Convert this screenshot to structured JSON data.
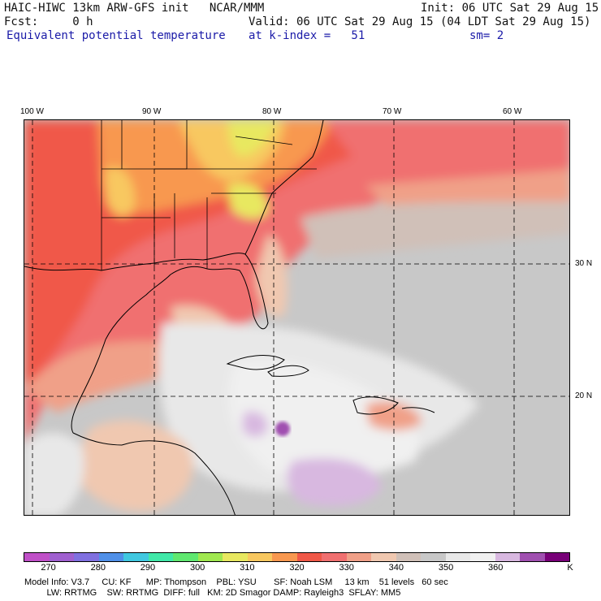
{
  "header": {
    "line1_left": "HAIC-HIWC 13km ARW-GFS init   NCAR/MMM",
    "line1_right": "Init: 06 UTC Sat 29 Aug 15",
    "line2_left": "Fcst:     0 h",
    "line2_right": "Valid: 06 UTC Sat 29 Aug 15 (04 LDT Sat 29 Aug 15)",
    "line3_left": "Equivalent potential temperature",
    "line3_mid": "at k-index =   51",
    "line3_right": "sm= 2"
  },
  "lon_labels": [
    "100 W",
    "90 W",
    "80 W",
    "70 W",
    "60 W"
  ],
  "lat_labels": [
    "30 N",
    "20 N"
  ],
  "colorbar": {
    "colors": [
      "#c050c8",
      "#a060d0",
      "#8070e0",
      "#5090e8",
      "#40c8e0",
      "#40e8a8",
      "#60e870",
      "#a0e850",
      "#e8e860",
      "#f8c860",
      "#f89850",
      "#f05848",
      "#f07070",
      "#f0a088",
      "#f0c8b0",
      "#d0c0b8",
      "#c8c8c8",
      "#e8e8e8",
      "#f0f0f0",
      "#d8b8e0",
      "#a050b0",
      "#780078"
    ],
    "labels": [
      "270",
      "280",
      "290",
      "300",
      "310",
      "320",
      "330",
      "340",
      "350",
      "360",
      "K"
    ]
  },
  "footer": {
    "line1": "Model Info: V3.7     CU: KF      MP: Thompson    PBL: YSU       SF: Noah LSM     13 km    51 levels   60 sec",
    "line2": "         LW: RRTMG    SW: RRTMG  DIFF: full   KM: 2D Smagor DAMP: Rayleigh3  SFLAY: MM5"
  }
}
